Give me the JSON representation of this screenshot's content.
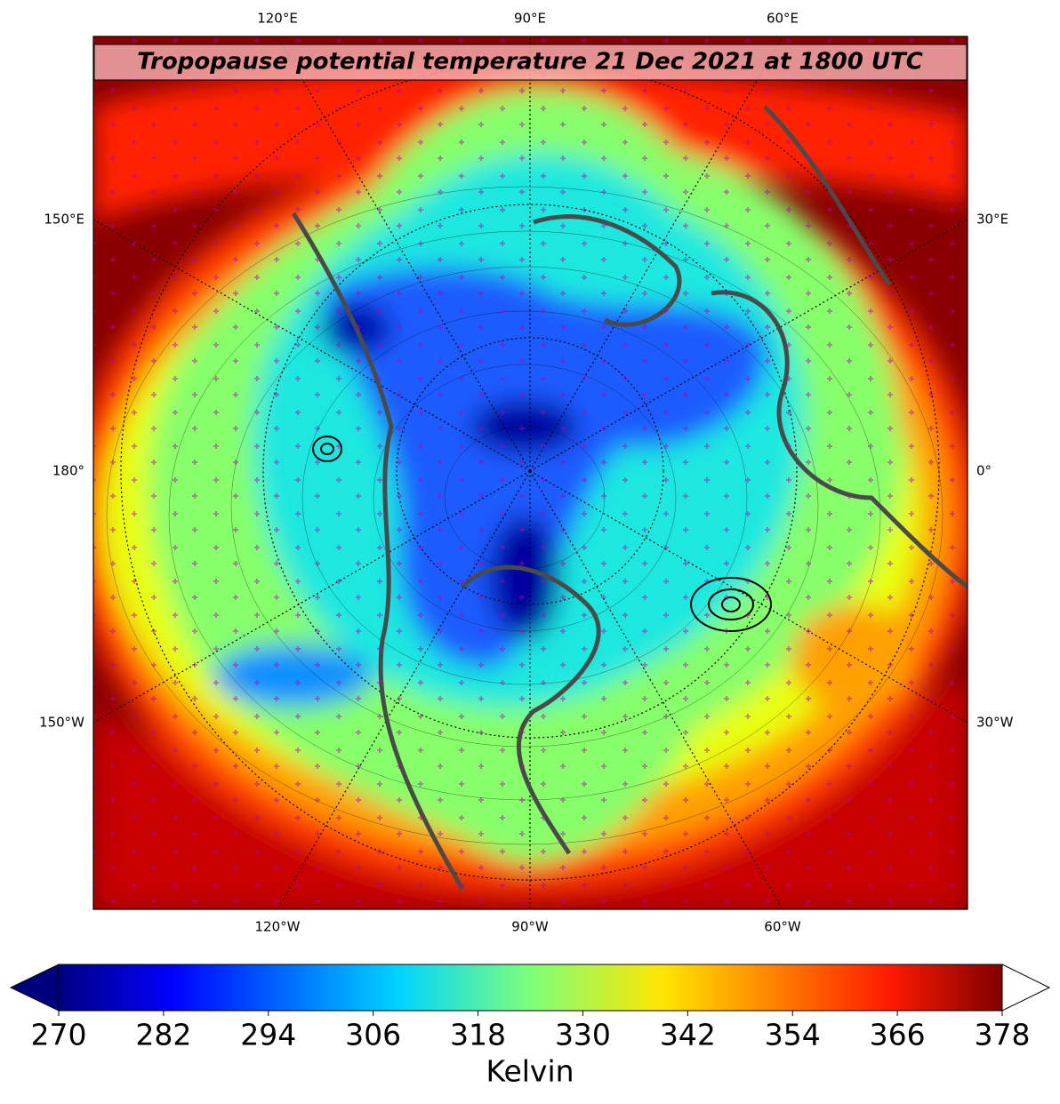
{
  "title": "Tropopause potential temperature 21 Dec 2021 at 1800 UTC",
  "map": {
    "top_labels": [
      "120°E",
      "90°E",
      "60°E"
    ],
    "bottom_labels": [
      "120°W",
      "90°W",
      "60°W"
    ],
    "left_labels": [
      "150°E",
      "180°",
      "150°W"
    ],
    "right_labels": [
      "30°E",
      "0°",
      "30°W"
    ]
  },
  "colorbar": {
    "label": "Kelvin",
    "lim": [
      270,
      378
    ],
    "ticks": [
      270,
      282,
      294,
      306,
      318,
      330,
      342,
      354,
      366,
      378
    ]
  }
}
